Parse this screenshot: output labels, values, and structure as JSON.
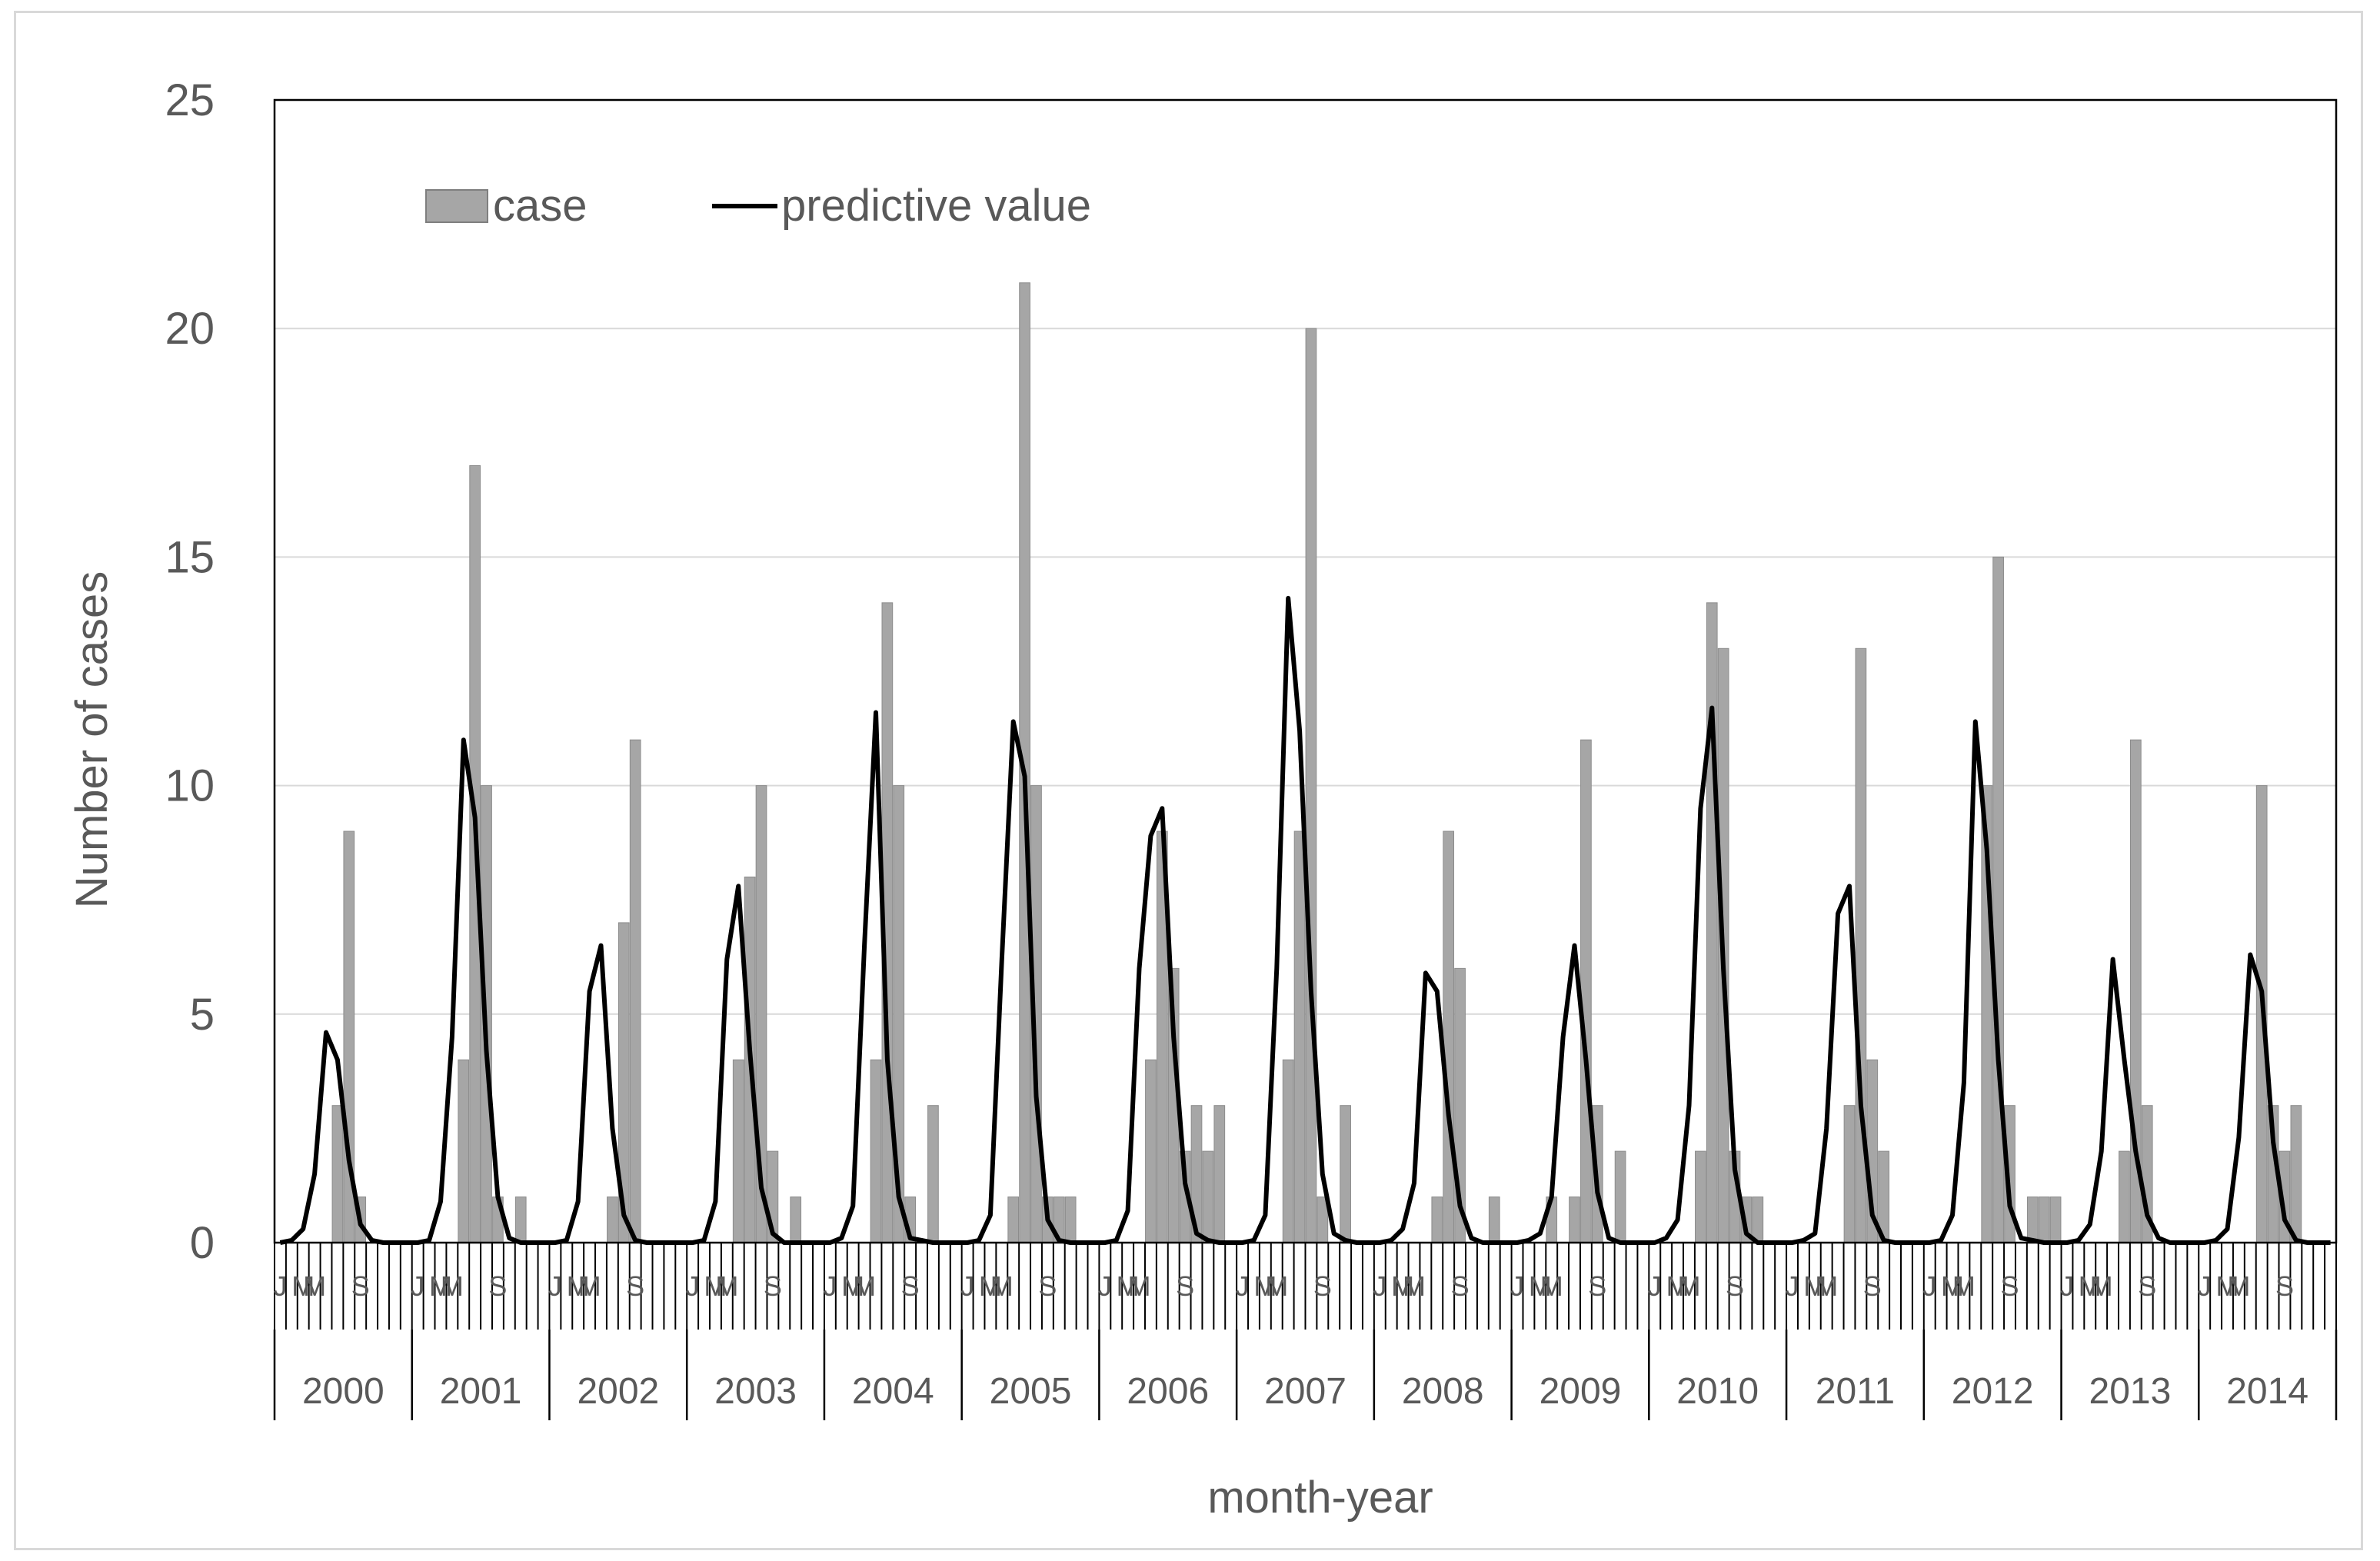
{
  "chart_data": {
    "type": "bar",
    "title": "",
    "xlabel": "month-year",
    "ylabel": "Number of cases",
    "ylim": [
      0,
      25
    ],
    "yticks": [
      0,
      5,
      10,
      15,
      20,
      25
    ],
    "grid": "horizontal",
    "legend_position": "top-left",
    "years": [
      "2000",
      "2001",
      "2002",
      "2003",
      "2004",
      "2005",
      "2006",
      "2007",
      "2008",
      "2009",
      "2010",
      "2011",
      "2012",
      "2013",
      "2014"
    ],
    "month_labels": [
      "J",
      "",
      "M",
      "M",
      "",
      "",
      "",
      "S",
      "",
      "",
      "",
      ""
    ],
    "series": [
      {
        "name": "case",
        "type": "bar",
        "color": "#a6a6a6",
        "values": [
          0,
          0,
          0,
          0,
          0,
          3,
          9,
          1,
          0,
          0,
          0,
          0,
          0,
          0,
          0,
          0,
          4,
          17,
          10,
          1,
          0,
          1,
          0,
          0,
          0,
          0,
          0,
          0,
          0,
          1,
          7,
          11,
          0,
          0,
          0,
          0,
          0,
          0,
          0,
          0,
          4,
          8,
          10,
          2,
          0,
          1,
          0,
          0,
          0,
          0,
          0,
          0,
          4,
          14,
          10,
          1,
          0,
          3,
          0,
          0,
          0,
          0,
          0,
          0,
          1,
          21,
          10,
          1,
          1,
          1,
          0,
          0,
          0,
          0,
          0,
          0,
          4,
          9,
          6,
          2,
          3,
          2,
          3,
          0,
          0,
          0,
          0,
          0,
          4,
          9,
          20,
          1,
          0,
          3,
          0,
          0,
          0,
          0,
          0,
          0,
          0,
          1,
          9,
          6,
          0,
          0,
          1,
          0,
          0,
          0,
          0,
          1,
          0,
          1,
          11,
          3,
          0,
          2,
          0,
          0,
          0,
          0,
          0,
          0,
          2,
          14,
          13,
          2,
          1,
          1,
          0,
          0,
          0,
          0,
          0,
          0,
          0,
          3,
          13,
          4,
          2,
          0,
          0,
          0,
          0,
          0,
          0,
          0,
          0,
          10,
          15,
          3,
          0,
          1,
          1,
          1,
          0,
          0,
          0,
          0,
          0,
          2,
          11,
          3,
          0,
          0,
          0,
          0,
          0,
          0,
          0,
          0,
          0,
          10,
          3,
          2,
          3,
          0,
          0,
          0
        ]
      },
      {
        "name": "predictive value",
        "type": "line",
        "color": "#000000",
        "values": [
          0,
          0.05,
          0.3,
          1.5,
          4.6,
          4.0,
          1.8,
          0.4,
          0.05,
          0,
          0,
          0,
          0,
          0.05,
          0.9,
          4.5,
          11.0,
          9.3,
          4.2,
          1.0,
          0.1,
          0,
          0,
          0,
          0,
          0.05,
          0.9,
          5.5,
          6.5,
          2.5,
          0.6,
          0.05,
          0,
          0,
          0,
          0,
          0,
          0.05,
          0.9,
          6.2,
          7.8,
          4.2,
          1.2,
          0.2,
          0,
          0,
          0,
          0,
          0,
          0.1,
          0.8,
          6.5,
          11.6,
          4.0,
          1.0,
          0.1,
          0.05,
          0,
          0,
          0,
          0,
          0.05,
          0.6,
          6.2,
          11.4,
          10.2,
          3.2,
          0.5,
          0.05,
          0,
          0,
          0,
          0,
          0.05,
          0.7,
          6.0,
          8.9,
          9.5,
          4.5,
          1.3,
          0.2,
          0.05,
          0,
          0,
          0,
          0.05,
          0.6,
          6.0,
          14.1,
          11.2,
          5.5,
          1.5,
          0.2,
          0.05,
          0,
          0,
          0,
          0.05,
          0.3,
          1.3,
          5.9,
          5.5,
          2.8,
          0.8,
          0.1,
          0,
          0,
          0,
          0,
          0.05,
          0.2,
          1.0,
          4.5,
          6.5,
          4.0,
          1.1,
          0.1,
          0,
          0,
          0,
          0,
          0.1,
          0.5,
          3.0,
          9.5,
          11.7,
          6.0,
          1.6,
          0.2,
          0,
          0,
          0,
          0,
          0.05,
          0.2,
          2.5,
          7.2,
          7.8,
          3.0,
          0.6,
          0.05,
          0,
          0,
          0,
          0,
          0.05,
          0.6,
          3.5,
          11.4,
          8.6,
          4.0,
          0.8,
          0.1,
          0.05,
          0,
          0,
          0,
          0.05,
          0.4,
          2.0,
          6.2,
          4.0,
          2.0,
          0.6,
          0.1,
          0,
          0,
          0,
          0,
          0.05,
          0.3,
          2.3,
          6.3,
          5.5,
          2.2,
          0.5,
          0.05,
          0,
          0,
          0
        ]
      }
    ]
  }
}
